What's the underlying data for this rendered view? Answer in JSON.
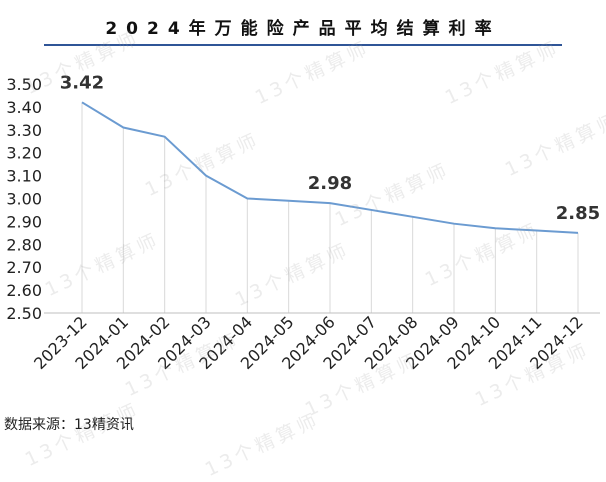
{
  "chart_data": {
    "type": "line",
    "title": "2024年万能险产品平均结算利率",
    "categories": [
      "2023-12",
      "2024-01",
      "2024-02",
      "2024-03",
      "2024-04",
      "2024-05",
      "2024-06",
      "2024-07",
      "2024-08",
      "2024-09",
      "2024-10",
      "2024-11",
      "2024-12"
    ],
    "series": [
      {
        "values": [
          3.42,
          3.31,
          3.27,
          3.1,
          3.0,
          2.99,
          2.98,
          2.95,
          2.92,
          2.89,
          2.87,
          2.86,
          2.85
        ]
      }
    ],
    "data_labels": [
      {
        "index": 0,
        "text": "3.42"
      },
      {
        "index": 6,
        "text": "2.98"
      },
      {
        "index": 12,
        "text": "2.85"
      }
    ],
    "ylim": [
      2.5,
      3.5
    ],
    "yticks": [
      "3.50",
      "3.40",
      "3.30",
      "3.20",
      "3.10",
      "3.00",
      "2.90",
      "2.80",
      "2.70",
      "2.60",
      "2.50"
    ],
    "xlabel": "",
    "ylabel": "",
    "grid": "vertical",
    "line_color": "#6b9bd1",
    "grid_color": "#d9d9d9"
  },
  "source": "数据来源：13精资讯",
  "watermark": "13个精算师"
}
